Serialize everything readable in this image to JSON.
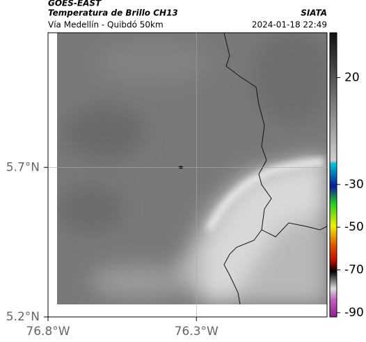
{
  "header": {
    "source": "GOES-EAST",
    "title": "Temperatura de Brillo CH13",
    "subtitle": "Vía Medellín - Quibdó 50km",
    "org": "SIATA",
    "datetime": "2024-01-18 22:49"
  },
  "map": {
    "xlim": [
      -76.8,
      -75.86
    ],
    "ylim": [
      5.2,
      6.15
    ],
    "xticks": [
      {
        "value": -76.8,
        "label": "76.8°W"
      },
      {
        "value": -76.3,
        "label": "76.3°W"
      }
    ],
    "yticks": [
      {
        "value": 5.7,
        "label": "5.7°N"
      },
      {
        "value": 5.2,
        "label": "5.2°N"
      }
    ],
    "grid": true
  },
  "colorbar": {
    "lim": [
      -92,
      41
    ],
    "ticks": [
      20,
      -30,
      -50,
      -70,
      -90
    ]
  }
}
